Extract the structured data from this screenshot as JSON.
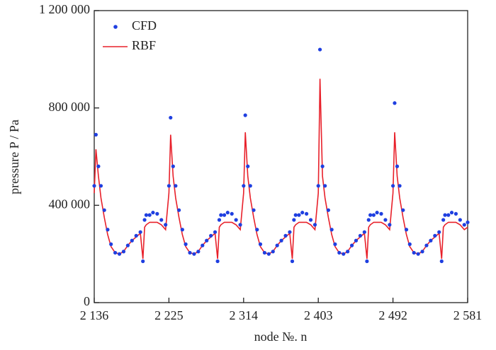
{
  "chart_data": {
    "type": "scatter-line",
    "xlabel": "node №. n",
    "ylabel": "pressure P / Pa",
    "x": [
      2136,
      2138,
      2141,
      2144,
      2148,
      2152,
      2156,
      2161,
      2166,
      2171,
      2176,
      2181,
      2186,
      2191,
      2194,
      2196,
      2198,
      2202,
      2206,
      2211,
      2216,
      2221,
      2225,
      2227,
      2230,
      2233,
      2237,
      2241,
      2245,
      2250,
      2255,
      2260,
      2265,
      2270,
      2275,
      2280,
      2283,
      2285,
      2287,
      2291,
      2295,
      2300,
      2305,
      2310,
      2314,
      2316,
      2319,
      2322,
      2326,
      2330,
      2334,
      2339,
      2344,
      2349,
      2354,
      2359,
      2364,
      2369,
      2372,
      2374,
      2376,
      2380,
      2384,
      2389,
      2394,
      2399,
      2403,
      2405,
      2408,
      2411,
      2415,
      2419,
      2423,
      2428,
      2433,
      2438,
      2443,
      2448,
      2453,
      2458,
      2461,
      2463,
      2465,
      2469,
      2473,
      2478,
      2483,
      2488,
      2492,
      2494,
      2497,
      2500,
      2504,
      2508,
      2512,
      2517,
      2522,
      2527,
      2532,
      2537,
      2542,
      2547,
      2550,
      2552,
      2554,
      2558,
      2562,
      2567,
      2572,
      2577,
      2581
    ],
    "series": [
      {
        "name": "CFD",
        "color": "#1f3fe0",
        "mode": "markers",
        "values": [
          480000,
          690000,
          560000,
          480000,
          380000,
          300000,
          240000,
          205000,
          200000,
          210000,
          235000,
          255000,
          275000,
          290000,
          170000,
          340000,
          360000,
          360000,
          370000,
          365000,
          340000,
          320000,
          480000,
          760000,
          560000,
          480000,
          380000,
          300000,
          240000,
          205000,
          200000,
          210000,
          235000,
          255000,
          275000,
          290000,
          170000,
          340000,
          360000,
          360000,
          370000,
          365000,
          340000,
          320000,
          480000,
          770000,
          560000,
          480000,
          380000,
          300000,
          240000,
          205000,
          200000,
          210000,
          235000,
          255000,
          275000,
          290000,
          170000,
          340000,
          360000,
          360000,
          370000,
          365000,
          340000,
          320000,
          480000,
          1040000,
          560000,
          480000,
          380000,
          300000,
          240000,
          205000,
          200000,
          210000,
          235000,
          255000,
          275000,
          290000,
          170000,
          340000,
          360000,
          360000,
          370000,
          365000,
          340000,
          320000,
          480000,
          820000,
          560000,
          480000,
          380000,
          300000,
          240000,
          205000,
          200000,
          210000,
          235000,
          255000,
          275000,
          290000,
          170000,
          340000,
          360000,
          360000,
          370000,
          365000,
          340000,
          320000,
          330000
        ]
      },
      {
        "name": "RBF",
        "color": "#e8202a",
        "mode": "lines",
        "values": [
          450000,
          630000,
          520000,
          430000,
          350000,
          280000,
          230000,
          205000,
          200000,
          210000,
          235000,
          255000,
          270000,
          285000,
          180000,
          310000,
          320000,
          330000,
          330000,
          330000,
          320000,
          300000,
          450000,
          690000,
          520000,
          430000,
          350000,
          280000,
          230000,
          205000,
          200000,
          210000,
          235000,
          255000,
          270000,
          285000,
          180000,
          310000,
          320000,
          330000,
          330000,
          330000,
          320000,
          300000,
          450000,
          700000,
          520000,
          430000,
          350000,
          280000,
          230000,
          205000,
          200000,
          210000,
          235000,
          255000,
          270000,
          285000,
          180000,
          310000,
          320000,
          330000,
          330000,
          330000,
          320000,
          300000,
          450000,
          920000,
          520000,
          430000,
          350000,
          280000,
          230000,
          205000,
          200000,
          210000,
          235000,
          255000,
          270000,
          285000,
          180000,
          310000,
          320000,
          330000,
          330000,
          330000,
          320000,
          300000,
          450000,
          700000,
          520000,
          430000,
          350000,
          280000,
          230000,
          205000,
          200000,
          210000,
          235000,
          255000,
          270000,
          285000,
          180000,
          310000,
          320000,
          330000,
          330000,
          330000,
          320000,
          300000,
          310000
        ]
      }
    ],
    "xlim": [
      2136,
      2581
    ],
    "xticks": [
      {
        "value": 2136,
        "label": "2 136"
      },
      {
        "value": 2225,
        "label": "2 225"
      },
      {
        "value": 2314,
        "label": "2 314"
      },
      {
        "value": 2403,
        "label": "2 403"
      },
      {
        "value": 2492,
        "label": "2 492"
      },
      {
        "value": 2581,
        "label": "2 581"
      }
    ],
    "ylim": [
      0,
      1200000
    ],
    "yticks": [
      0,
      {
        "value": 400000,
        "label": "400 000"
      },
      {
        "value": 800000,
        "label": "800 000"
      },
      {
        "value": 1200000,
        "label": "1 200 000"
      }
    ],
    "legend": "top-left"
  }
}
